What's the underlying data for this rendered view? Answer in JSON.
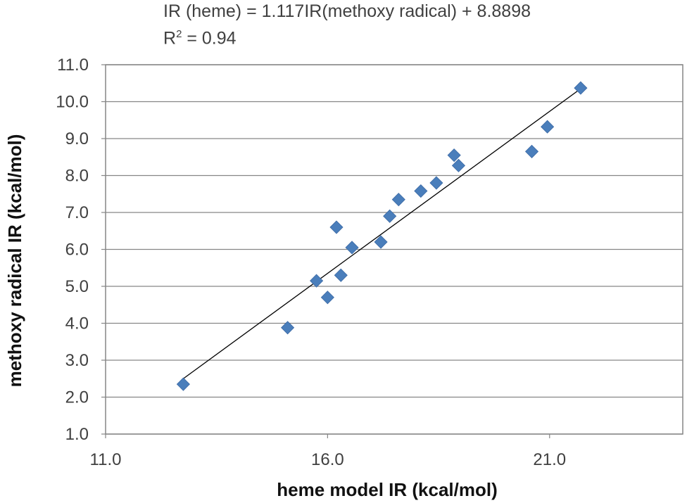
{
  "equation": {
    "line1": "IR (heme) = 1.117IR(methoxy radical) + 8.8898",
    "r2_prefix": "R",
    "r2_sup": "2",
    "r2_suffix": " = 0.94"
  },
  "chart_data": {
    "type": "scatter",
    "title": "",
    "xlabel": "heme model IR (kcal/mol)",
    "ylabel": "methoxy radical IR (kcal/mol)",
    "xlim": [
      11.0,
      24.0
    ],
    "ylim": [
      1.0,
      11.0
    ],
    "xticks": [
      "11.0",
      "16.0",
      "21.0"
    ],
    "xtick_values": [
      11.0,
      16.0,
      21.0
    ],
    "yticks": [
      "1.0",
      "2.0",
      "3.0",
      "4.0",
      "5.0",
      "6.0",
      "7.0",
      "8.0",
      "9.0",
      "10.0",
      "11.0"
    ],
    "ytick_values": [
      1.0,
      2.0,
      3.0,
      4.0,
      5.0,
      6.0,
      7.0,
      8.0,
      9.0,
      10.0,
      11.0
    ],
    "grid": "horizontal",
    "legend": "none",
    "marker": "diamond",
    "marker_color": "#4a7ebb",
    "series": [
      {
        "x": [
          12.75,
          15.1,
          15.75,
          16.0,
          16.2,
          16.3,
          16.55,
          17.2,
          17.4,
          17.6,
          18.1,
          18.45,
          18.85,
          18.95,
          20.6,
          20.95,
          21.7
        ],
        "y": [
          2.35,
          3.88,
          5.15,
          4.7,
          6.6,
          5.3,
          6.05,
          6.2,
          6.9,
          7.35,
          7.58,
          7.8,
          8.55,
          8.27,
          8.65,
          9.32,
          10.37
        ]
      }
    ],
    "trendline": {
      "type": "linear",
      "x": [
        12.75,
        21.7
      ],
      "y": [
        2.5,
        10.35
      ],
      "color": "#000000"
    }
  }
}
